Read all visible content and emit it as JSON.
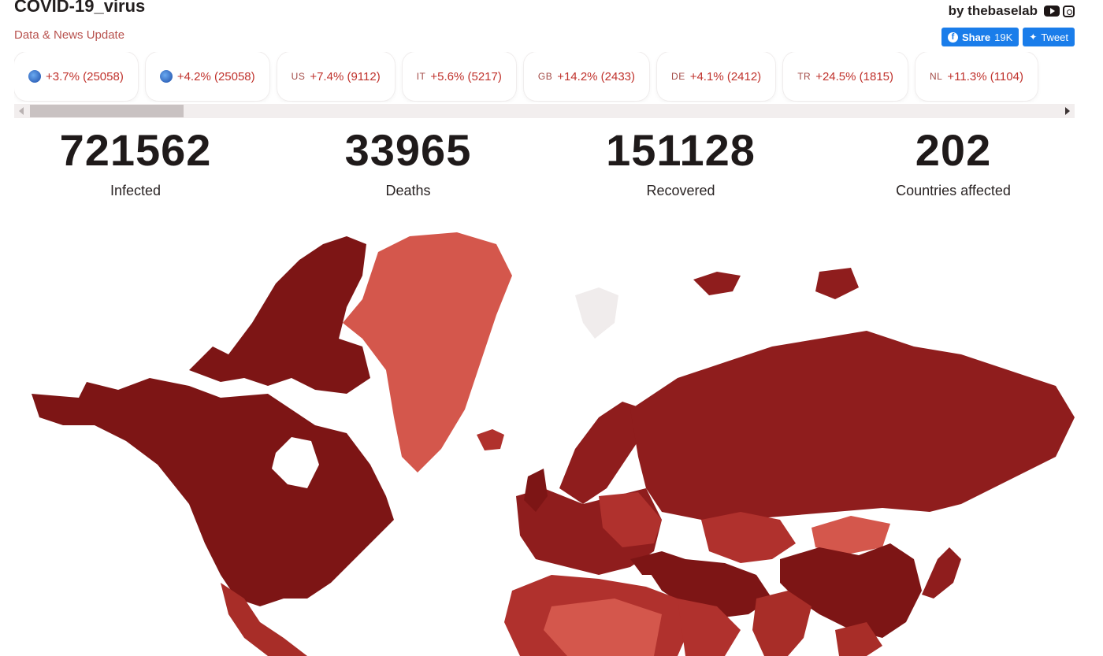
{
  "header": {
    "title": "COVID-19_virus",
    "subtitle": "Data & News Update",
    "brand": "by thebaselab",
    "share_label": "Share",
    "share_count": "19K",
    "tweet_label": "Tweet"
  },
  "chips": [
    {
      "code": "",
      "icon": "globe-icon",
      "text": "+3.7% (25058)"
    },
    {
      "code": "",
      "icon": "globe-icon",
      "text": "+4.2% (25058)"
    },
    {
      "code": "US",
      "text": "+7.4% (9112)"
    },
    {
      "code": "IT",
      "text": "+5.6% (5217)"
    },
    {
      "code": "GB",
      "text": "+14.2% (2433)"
    },
    {
      "code": "DE",
      "text": "+4.1% (2412)"
    },
    {
      "code": "TR",
      "text": "+24.5% (1815)"
    },
    {
      "code": "NL",
      "text": "+11.3% (1104)"
    }
  ],
  "stats": {
    "infected": {
      "value": "721562",
      "label": "Infected"
    },
    "deaths": {
      "value": "33965",
      "label": "Deaths"
    },
    "recovered": {
      "value": "151128",
      "label": "Recovered"
    },
    "countries": {
      "value": "202",
      "label": "Countries affected"
    }
  },
  "colors": {
    "darkest": "#7d1515",
    "dark": "#8f1d1d",
    "mid": "#b0312d",
    "light": "#d4574c",
    "lightest": "#f0ecec",
    "accent_text": "#c0322c",
    "share_blue": "#1a7dea"
  }
}
